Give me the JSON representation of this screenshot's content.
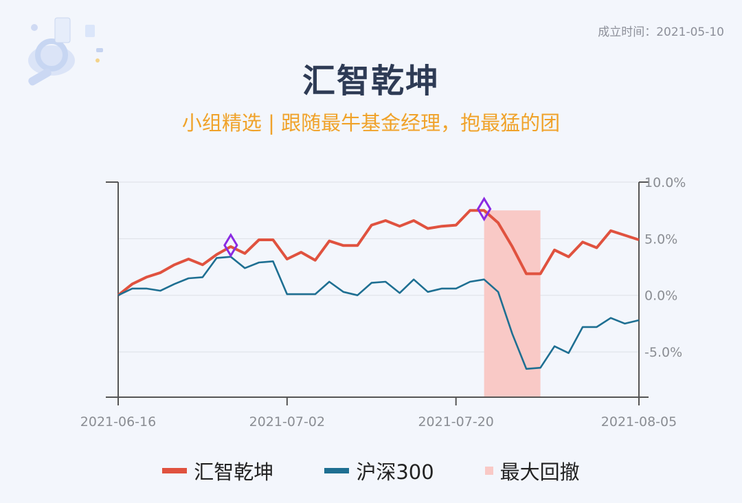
{
  "header": {
    "established": "成立时间：2021-05-10",
    "title": "汇智乾坤",
    "subtitle": "小组精选 | 跟随最牛基金经理，抱最猛的团"
  },
  "colors": {
    "fund": "#e0523f",
    "index": "#1e6f92",
    "drawdown": "#f9c9c6",
    "marker": "#8a2be2"
  },
  "chart_data": {
    "type": "line",
    "x_ticks": [
      "2021-06-16",
      "2021-07-02",
      "2021-07-20",
      "2021-08-05"
    ],
    "y_ticks": [
      "10.0%",
      "5.0%",
      "0.0%",
      "-5.0%"
    ],
    "y_tick_values": [
      10,
      5,
      0,
      -5
    ],
    "ylim": [
      -9,
      10
    ],
    "x_count": 38,
    "x_tick_indices": [
      0,
      12,
      24,
      37
    ],
    "series": [
      {
        "name": "汇智乾坤",
        "values": [
          0,
          1.0,
          1.6,
          2.0,
          2.7,
          3.2,
          2.7,
          3.6,
          4.3,
          3.7,
          4.9,
          4.9,
          3.2,
          3.8,
          3.1,
          4.8,
          4.4,
          4.4,
          6.2,
          6.6,
          6.1,
          6.6,
          5.9,
          6.1,
          6.2,
          7.5,
          7.5,
          6.4,
          4.3,
          1.9,
          1.9,
          4.0,
          3.4,
          4.7,
          4.2,
          5.7,
          5.3,
          4.9
        ]
      },
      {
        "name": "沪深300",
        "values": [
          0,
          0.6,
          0.6,
          0.4,
          1.0,
          1.5,
          1.6,
          3.3,
          3.4,
          2.4,
          2.9,
          3.0,
          0.1,
          0.1,
          0.1,
          1.2,
          0.3,
          0.0,
          1.1,
          1.2,
          0.2,
          1.4,
          0.3,
          0.6,
          0.6,
          1.2,
          1.4,
          0.3,
          -3.4,
          -6.5,
          -6.4,
          -4.5,
          -5.1,
          -2.8,
          -2.8,
          -2.0,
          -2.5,
          -2.2
        ]
      }
    ],
    "drawdown_range": [
      26,
      30
    ],
    "peak_markers": [
      8,
      26
    ],
    "legend": [
      "汇智乾坤",
      "沪深300",
      "最大回撤"
    ]
  }
}
